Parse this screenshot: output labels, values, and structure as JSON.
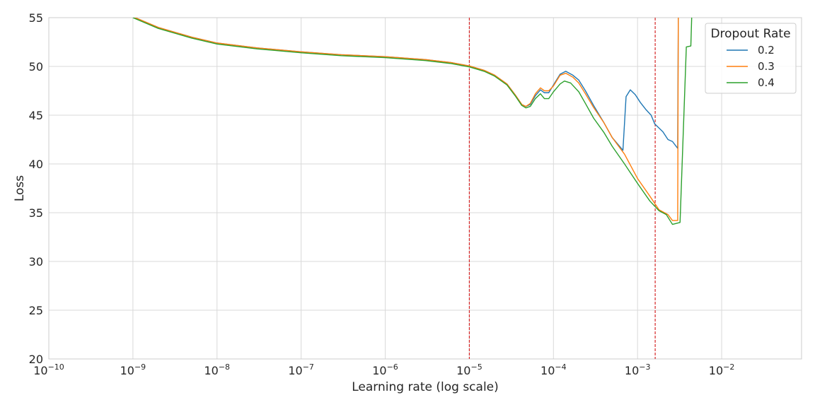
{
  "chart_data": {
    "type": "line",
    "title": "",
    "xlabel": "Learning rate (log scale)",
    "ylabel": "Loss",
    "xscale": "log",
    "xlim": [
      1e-10,
      0.0891
    ],
    "ylim": [
      20,
      55
    ],
    "grid": true,
    "legend": {
      "title": "Dropout Rate",
      "placement": "top-right"
    },
    "x_ticks": [
      {
        "value": 1e-10,
        "base": "10",
        "exp": "−10"
      },
      {
        "value": 1e-09,
        "base": "10",
        "exp": "−9"
      },
      {
        "value": 1e-08,
        "base": "10",
        "exp": "−8"
      },
      {
        "value": 1e-07,
        "base": "10",
        "exp": "−7"
      },
      {
        "value": 1e-06,
        "base": "10",
        "exp": "−6"
      },
      {
        "value": 1e-05,
        "base": "10",
        "exp": "−5"
      },
      {
        "value": 0.0001,
        "base": "10",
        "exp": "−4"
      },
      {
        "value": 0.001,
        "base": "10",
        "exp": "−3"
      },
      {
        "value": 0.01,
        "base": "10",
        "exp": "−2"
      }
    ],
    "y_ticks": [
      20,
      25,
      30,
      35,
      40,
      45,
      50,
      55
    ],
    "vlines": [
      {
        "x": 1e-05,
        "color": "#d62728",
        "style": "dashed"
      },
      {
        "x": 0.00162,
        "color": "#d62728",
        "style": "dashed"
      }
    ],
    "series": [
      {
        "name": "0.2",
        "color": "#1f77b4",
        "points": [
          [
            1e-09,
            55.1
          ],
          [
            2e-09,
            54.0
          ],
          [
            5e-09,
            53.0
          ],
          [
            1e-08,
            52.4
          ],
          [
            3e-08,
            51.9
          ],
          [
            1e-07,
            51.5
          ],
          [
            3e-07,
            51.2
          ],
          [
            1e-06,
            51.0
          ],
          [
            3e-06,
            50.7
          ],
          [
            6e-06,
            50.4
          ],
          [
            1e-05,
            50.05
          ],
          [
            1.5e-05,
            49.6
          ],
          [
            2e-05,
            49.1
          ],
          [
            2.8e-05,
            48.2
          ],
          [
            3.5e-05,
            47.1
          ],
          [
            4.2e-05,
            46.1
          ],
          [
            4.7e-05,
            45.9
          ],
          [
            5.3e-05,
            46.1
          ],
          [
            6.1e-05,
            47.0
          ],
          [
            7e-05,
            47.6
          ],
          [
            7.8e-05,
            47.3
          ],
          [
            8.8e-05,
            47.3
          ],
          [
            0.0001,
            48.1
          ],
          [
            0.00012,
            49.2
          ],
          [
            0.00014,
            49.5
          ],
          [
            0.00017,
            49.1
          ],
          [
            0.0002,
            48.6
          ],
          [
            0.00024,
            47.5
          ],
          [
            0.0003,
            46.0
          ],
          [
            0.0004,
            44.2
          ],
          [
            0.0005,
            42.7
          ],
          [
            0.00067,
            41.4
          ],
          [
            0.00073,
            46.9
          ],
          [
            0.00082,
            47.6
          ],
          [
            0.00094,
            47.1
          ],
          [
            0.00108,
            46.3
          ],
          [
            0.00125,
            45.6
          ],
          [
            0.00145,
            45.0
          ],
          [
            0.0016,
            44.1
          ],
          [
            0.002,
            43.3
          ],
          [
            0.0023,
            42.5
          ],
          [
            0.0026,
            42.3
          ],
          [
            0.003,
            41.6
          ],
          [
            0.00305,
            55.0
          ]
        ]
      },
      {
        "name": "0.3",
        "color": "#ff7f0e",
        "points": [
          [
            1e-09,
            55.1
          ],
          [
            2e-09,
            54.0
          ],
          [
            5e-09,
            53.0
          ],
          [
            1e-08,
            52.4
          ],
          [
            3e-08,
            51.9
          ],
          [
            1e-07,
            51.5
          ],
          [
            3e-07,
            51.2
          ],
          [
            1e-06,
            51.0
          ],
          [
            3e-06,
            50.7
          ],
          [
            6e-06,
            50.4
          ],
          [
            1e-05,
            50.05
          ],
          [
            1.5e-05,
            49.6
          ],
          [
            2e-05,
            49.1
          ],
          [
            2.8e-05,
            48.2
          ],
          [
            3.5e-05,
            47.1
          ],
          [
            4.2e-05,
            46.1
          ],
          [
            4.7e-05,
            45.9
          ],
          [
            5.3e-05,
            46.2
          ],
          [
            6.1e-05,
            47.2
          ],
          [
            7e-05,
            47.8
          ],
          [
            7.8e-05,
            47.5
          ],
          [
            8.8e-05,
            47.5
          ],
          [
            0.0001,
            48.0
          ],
          [
            0.00012,
            49.1
          ],
          [
            0.00014,
            49.3
          ],
          [
            0.00017,
            48.9
          ],
          [
            0.0002,
            48.3
          ],
          [
            0.00024,
            47.2
          ],
          [
            0.0003,
            45.8
          ],
          [
            0.0004,
            44.2
          ],
          [
            0.0005,
            42.7
          ],
          [
            0.0007,
            41.0
          ],
          [
            0.001,
            38.5
          ],
          [
            0.0014,
            36.7
          ],
          [
            0.0018,
            35.3
          ],
          [
            0.0023,
            34.8
          ],
          [
            0.0026,
            34.2
          ],
          [
            0.003,
            34.2
          ],
          [
            0.00305,
            55.0
          ]
        ]
      },
      {
        "name": "0.4",
        "color": "#2ca02c",
        "points": [
          [
            1e-09,
            55.0
          ],
          [
            2e-09,
            53.9
          ],
          [
            5e-09,
            52.9
          ],
          [
            1e-08,
            52.3
          ],
          [
            3e-08,
            51.8
          ],
          [
            1e-07,
            51.4
          ],
          [
            3e-07,
            51.1
          ],
          [
            1e-06,
            50.9
          ],
          [
            3e-06,
            50.6
          ],
          [
            6e-06,
            50.3
          ],
          [
            1e-05,
            49.95
          ],
          [
            1.5e-05,
            49.5
          ],
          [
            2e-05,
            49.0
          ],
          [
            2.8e-05,
            48.1
          ],
          [
            3.5e-05,
            47.0
          ],
          [
            4.2e-05,
            46.0
          ],
          [
            4.7e-05,
            45.75
          ],
          [
            5.3e-05,
            45.9
          ],
          [
            6.1e-05,
            46.7
          ],
          [
            7e-05,
            47.2
          ],
          [
            7.8e-05,
            46.7
          ],
          [
            8.8e-05,
            46.7
          ],
          [
            0.0001,
            47.4
          ],
          [
            0.00012,
            48.2
          ],
          [
            0.000135,
            48.5
          ],
          [
            0.00016,
            48.3
          ],
          [
            0.0002,
            47.4
          ],
          [
            0.00024,
            46.2
          ],
          [
            0.0003,
            44.7
          ],
          [
            0.0004,
            43.2
          ],
          [
            0.0005,
            41.8
          ],
          [
            0.0007,
            40.0
          ],
          [
            0.001,
            38.0
          ],
          [
            0.0014,
            36.2
          ],
          [
            0.0018,
            35.2
          ],
          [
            0.0022,
            34.8
          ],
          [
            0.0026,
            33.8
          ],
          [
            0.0032,
            34.0
          ],
          [
            0.0038,
            52.0
          ],
          [
            0.0043,
            52.1
          ],
          [
            0.0044,
            55.0
          ]
        ]
      }
    ]
  }
}
